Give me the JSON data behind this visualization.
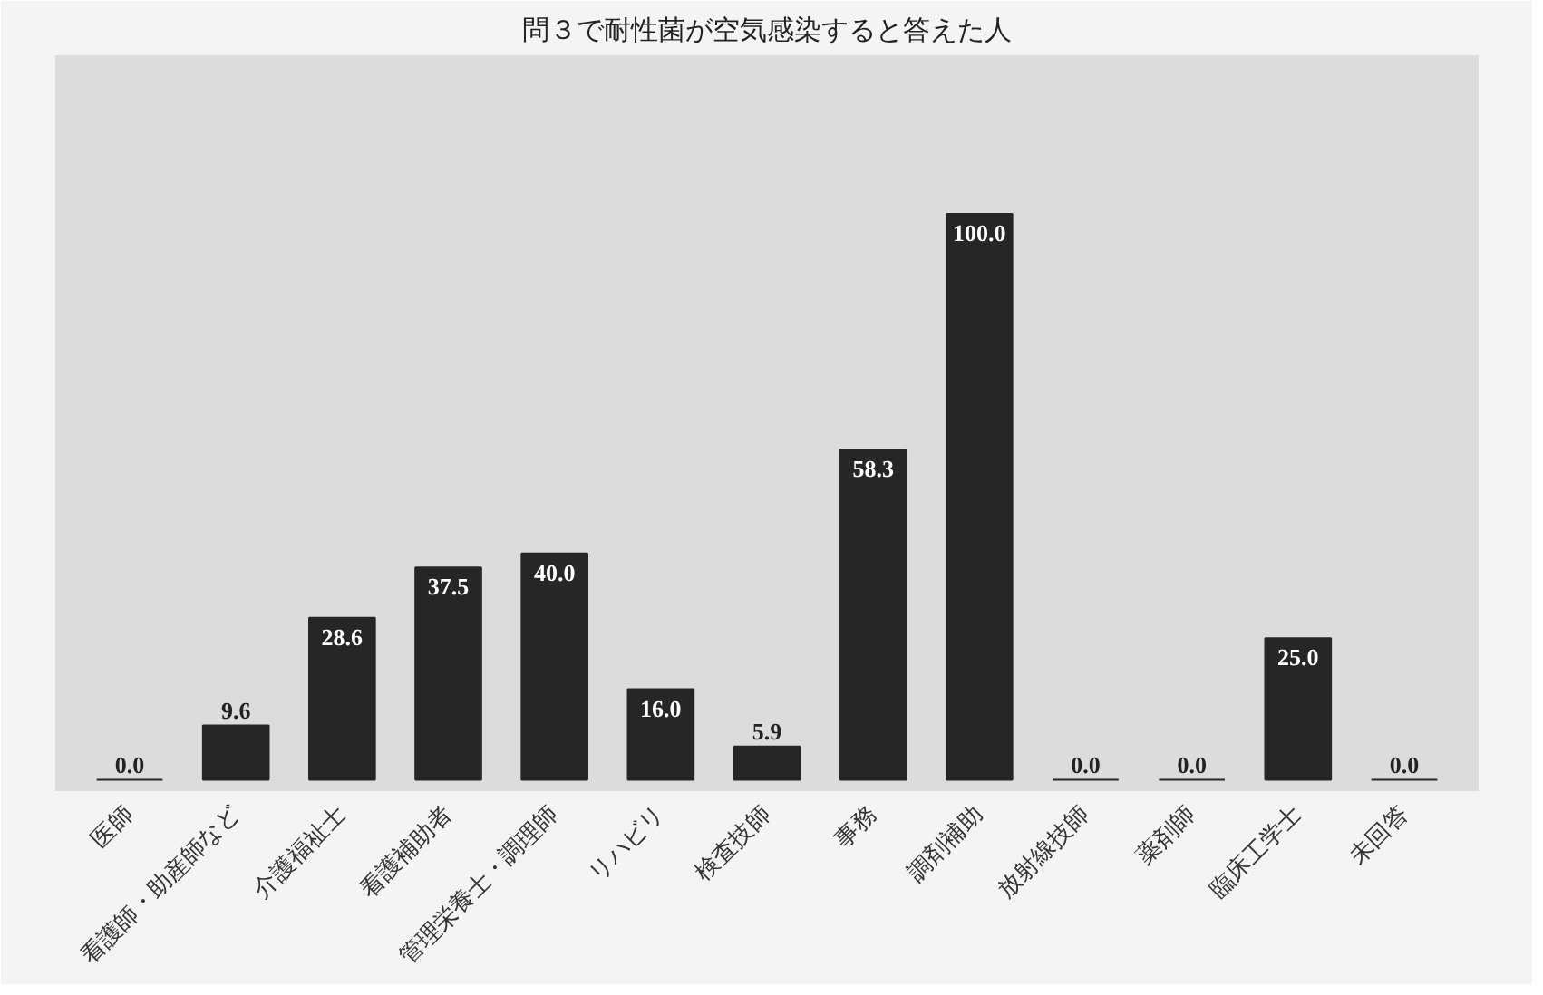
{
  "chart_data": {
    "type": "bar",
    "title": "問３で耐性菌が空気感染すると答えた人",
    "categories": [
      "医師",
      "看護師・助産師など",
      "介護福祉士",
      "看護補助者",
      "管理栄養士・調理師",
      "リハビリ",
      "検査技師",
      "事務",
      "調剤補助",
      "放射線技師",
      "薬剤師",
      "臨床工学士",
      "未回答"
    ],
    "values": [
      0.0,
      9.6,
      28.6,
      37.5,
      40.0,
      16.0,
      5.9,
      58.3,
      100.0,
      0.0,
      0.0,
      25.0,
      0.0
    ],
    "value_labels": [
      "0.0",
      "9.6",
      "28.6",
      "37.5",
      "40.0",
      "16.0",
      "5.9",
      "58.3",
      "100.0",
      "0.0",
      "0.0",
      "25.0",
      "0.0"
    ],
    "color": "#262626",
    "grid": false
  }
}
